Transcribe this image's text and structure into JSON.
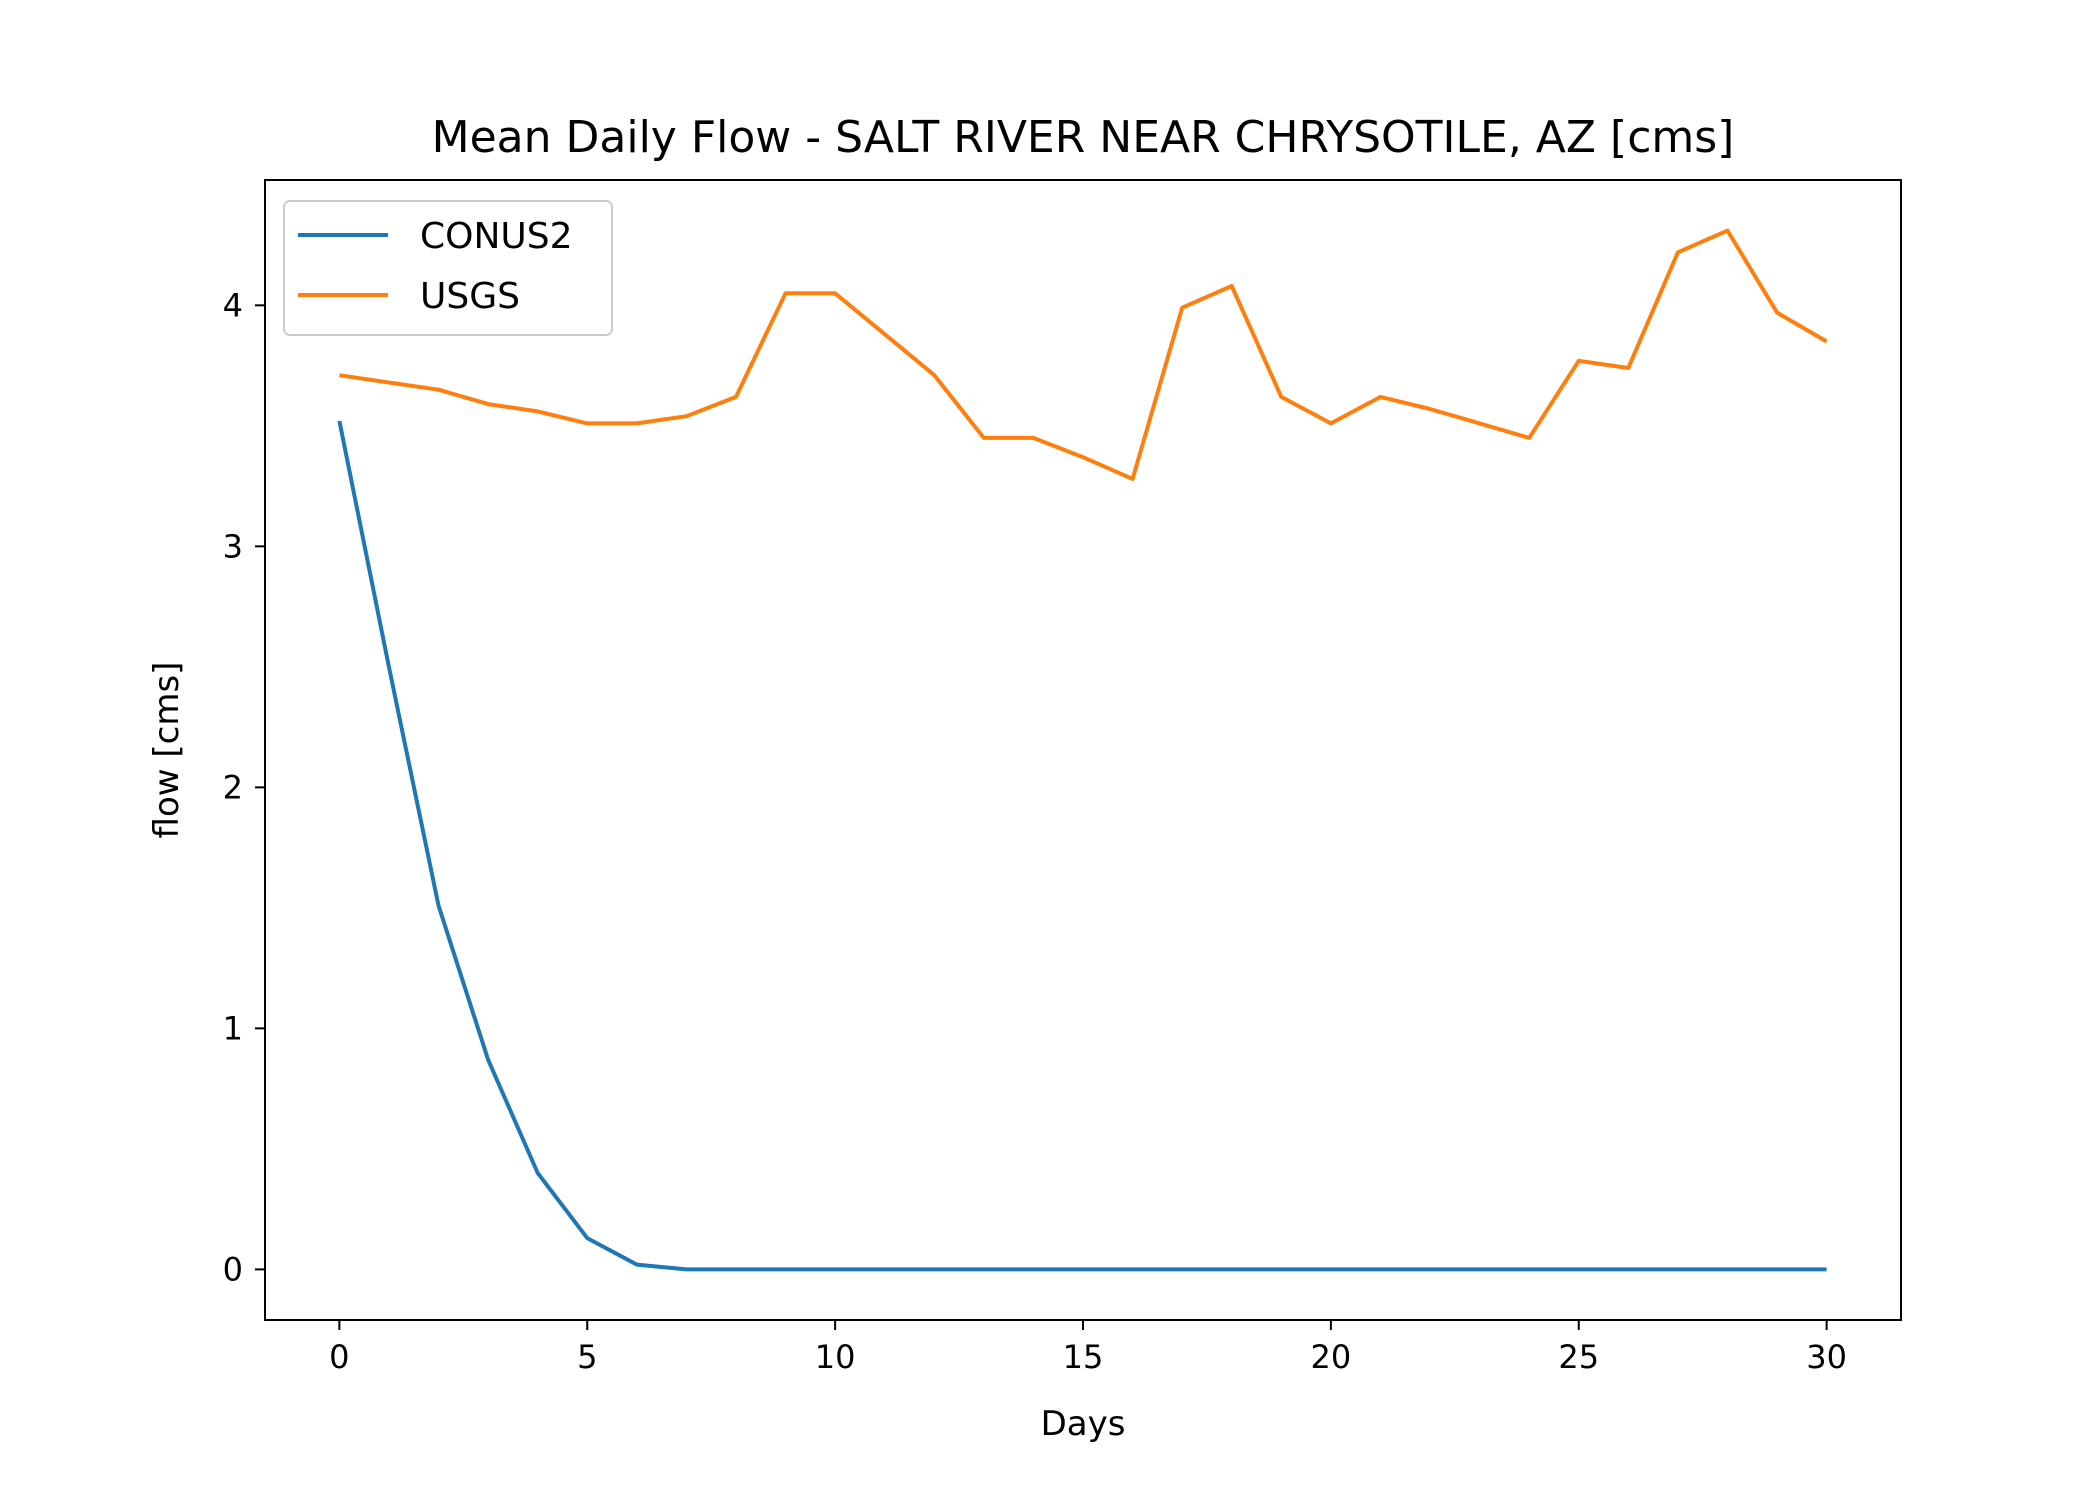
{
  "chart_data": {
    "type": "line",
    "title": "Mean Daily Flow - SALT RIVER NEAR CHRYSOTILE, AZ [cms]",
    "xlabel": "Days",
    "ylabel": "flow [cms]",
    "xlim": [
      -1.5,
      31.5
    ],
    "ylim": [
      -0.21,
      4.52
    ],
    "xticks": [
      0,
      5,
      10,
      15,
      20,
      25,
      30
    ],
    "yticks": [
      0,
      1,
      2,
      3,
      4
    ],
    "grid": false,
    "legend_position": "top-left",
    "series": [
      {
        "name": "CONUS2",
        "color": "#1f77b4",
        "x": [
          0,
          1,
          2,
          3,
          4,
          5,
          6,
          7,
          8,
          9,
          10,
          11,
          12,
          13,
          14,
          15,
          16,
          17,
          18,
          19,
          20,
          21,
          22,
          23,
          24,
          25,
          26,
          27,
          28,
          29,
          30
        ],
        "y": [
          3.52,
          2.5,
          1.51,
          0.87,
          0.4,
          0.13,
          0.02,
          0.0,
          0.0,
          0.0,
          0.0,
          0.0,
          0.0,
          0.0,
          0.0,
          0.0,
          0.0,
          0.0,
          0.0,
          0.0,
          0.0,
          0.0,
          0.0,
          0.0,
          0.0,
          0.0,
          0.0,
          0.0,
          0.0,
          0.0,
          0.0
        ]
      },
      {
        "name": "USGS",
        "color": "#ff7f0e",
        "x": [
          0,
          1,
          2,
          3,
          4,
          5,
          6,
          7,
          8,
          9,
          10,
          11,
          12,
          13,
          14,
          15,
          16,
          17,
          18,
          19,
          20,
          21,
          22,
          23,
          24,
          25,
          26,
          27,
          28,
          29,
          30
        ],
        "y": [
          3.71,
          3.68,
          3.65,
          3.59,
          3.56,
          3.51,
          3.51,
          3.54,
          3.62,
          4.05,
          4.05,
          3.88,
          3.71,
          3.45,
          3.45,
          3.37,
          3.28,
          3.99,
          4.08,
          3.62,
          3.51,
          3.62,
          3.57,
          3.51,
          3.45,
          3.77,
          3.74,
          4.22,
          4.31,
          3.97,
          3.85
        ]
      }
    ]
  }
}
